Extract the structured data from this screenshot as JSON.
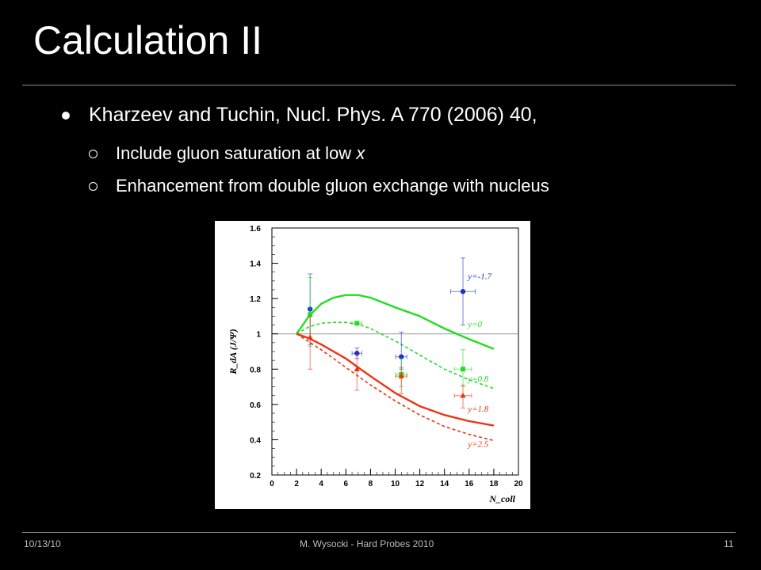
{
  "slide": {
    "title": "Calculation II",
    "bullet": "Kharzeev and Tuchin, Nucl. Phys. A 770 (2006) 40,",
    "subbullets": [
      {
        "prefix": "Include gluon saturation at low ",
        "emph": "x"
      },
      {
        "prefix": "Enhancement from double gluon exchange with nucleus",
        "emph": ""
      }
    ]
  },
  "footer": {
    "date": "10/13/10",
    "center": "M. Wysocki - Hard Probes 2010",
    "page": "11"
  },
  "chart_data": {
    "type": "line",
    "xlabel": "N_coll",
    "ylabel": "R_dA (J/Ψ)",
    "xlim": [
      0,
      20
    ],
    "ylim": [
      0.2,
      1.6
    ],
    "xticks": [
      0,
      2,
      4,
      6,
      8,
      10,
      12,
      14,
      16,
      18,
      20
    ],
    "yticks": [
      0.2,
      0.4,
      0.6,
      0.8,
      1,
      1.2,
      1.4,
      1.6
    ],
    "reference_line": 1,
    "grid": false,
    "colors": {
      "green": "#22dd22",
      "red": "#ee3311",
      "blue": "#1a33cc"
    },
    "curves": [
      {
        "name": "y=0",
        "color": "#22dd22",
        "dash": false,
        "x": [
          2,
          3,
          4,
          5,
          6,
          7,
          8,
          10,
          12,
          14,
          16,
          18
        ],
        "y": [
          1.0,
          1.1,
          1.17,
          1.205,
          1.22,
          1.22,
          1.205,
          1.15,
          1.1,
          1.03,
          0.97,
          0.915
        ]
      },
      {
        "name": "y=0.8",
        "color": "#22dd22",
        "dash": true,
        "x": [
          2,
          3,
          4,
          5,
          6,
          7,
          8,
          10,
          12,
          14,
          16,
          18
        ],
        "y": [
          1.0,
          1.04,
          1.06,
          1.065,
          1.065,
          1.055,
          1.03,
          0.96,
          0.88,
          0.8,
          0.74,
          0.69
        ]
      },
      {
        "name": "y=1.8",
        "color": "#ee3311",
        "dash": false,
        "x": [
          2,
          3,
          4,
          5,
          6,
          7,
          8,
          10,
          12,
          14,
          16,
          18
        ],
        "y": [
          1.0,
          0.975,
          0.94,
          0.9,
          0.86,
          0.81,
          0.76,
          0.665,
          0.59,
          0.54,
          0.505,
          0.48
        ]
      },
      {
        "name": "y=2.5",
        "color": "#ee3311",
        "dash": true,
        "x": [
          2,
          3,
          4,
          5,
          6,
          7,
          8,
          10,
          12,
          14,
          16,
          18
        ],
        "y": [
          1.0,
          0.955,
          0.91,
          0.86,
          0.81,
          0.76,
          0.71,
          0.62,
          0.54,
          0.475,
          0.43,
          0.395
        ]
      }
    ],
    "points": [
      {
        "marker": "circle",
        "color": "#1a33cc",
        "x": 3.1,
        "y": 1.14,
        "yerr": [
          1.34,
          0.94
        ],
        "xerr": 0
      },
      {
        "marker": "circle",
        "color": "#1a33cc",
        "x": 6.9,
        "y": 0.89,
        "yerr": [
          0.92,
          0.86
        ],
        "xerr": 0.4
      },
      {
        "marker": "circle",
        "color": "#1a33cc",
        "x": 10.5,
        "y": 0.87,
        "yerr": [
          1.01,
          0.8
        ],
        "xerr": 0.45
      },
      {
        "marker": "circle",
        "color": "#1a33cc",
        "x": 15.5,
        "y": 1.24,
        "yerr": [
          1.43,
          1.05
        ],
        "xerr": 1.0
      },
      {
        "marker": "square",
        "color": "#22dd22",
        "x": 3.1,
        "y": 1.11,
        "yerr": [
          1.32,
          0.93
        ],
        "xerr": 0
      },
      {
        "marker": "square",
        "color": "#22dd22",
        "x": 6.9,
        "y": 1.06,
        "yerr": [
          1.07,
          1.05
        ],
        "xerr": 0.4
      },
      {
        "marker": "square",
        "color": "#22dd22",
        "x": 10.5,
        "y": 0.77,
        "yerr": [
          0.86,
          0.7
        ],
        "xerr": 0.45
      },
      {
        "marker": "square",
        "color": "#22dd22",
        "x": 15.5,
        "y": 0.8,
        "yerr": [
          0.91,
          0.7
        ],
        "xerr": 0.7
      },
      {
        "marker": "triangle",
        "color": "#ee3311",
        "x": 3.1,
        "y": 0.98,
        "yerr": [
          1.1,
          0.8
        ],
        "xerr": 0
      },
      {
        "marker": "triangle",
        "color": "#ee3311",
        "x": 6.9,
        "y": 0.8,
        "yerr": [
          0.88,
          0.68
        ],
        "xerr": 0
      },
      {
        "marker": "triangle",
        "color": "#ee3311",
        "x": 10.5,
        "y": 0.76,
        "yerr": [
          0.81,
          0.66
        ],
        "xerr": 0.45
      },
      {
        "marker": "triangle",
        "color": "#ee3311",
        "x": 15.5,
        "y": 0.65,
        "yerr": [
          0.71,
          0.58
        ],
        "xerr": 0.7
      }
    ],
    "labels": [
      {
        "text": "y=-1.7",
        "color": "#1a33cc",
        "x": 15.9,
        "y": 1.31
      },
      {
        "text": "y=0",
        "color": "#22dd22",
        "x": 15.9,
        "y": 1.04
      },
      {
        "text": "y=0.8",
        "color": "#22dd22",
        "x": 15.9,
        "y": 0.73
      },
      {
        "text": "y=1.8",
        "color": "#ee3311",
        "x": 15.9,
        "y": 0.56
      },
      {
        "text": "y=2.5",
        "color": "#ee3311",
        "x": 15.9,
        "y": 0.36
      }
    ]
  }
}
